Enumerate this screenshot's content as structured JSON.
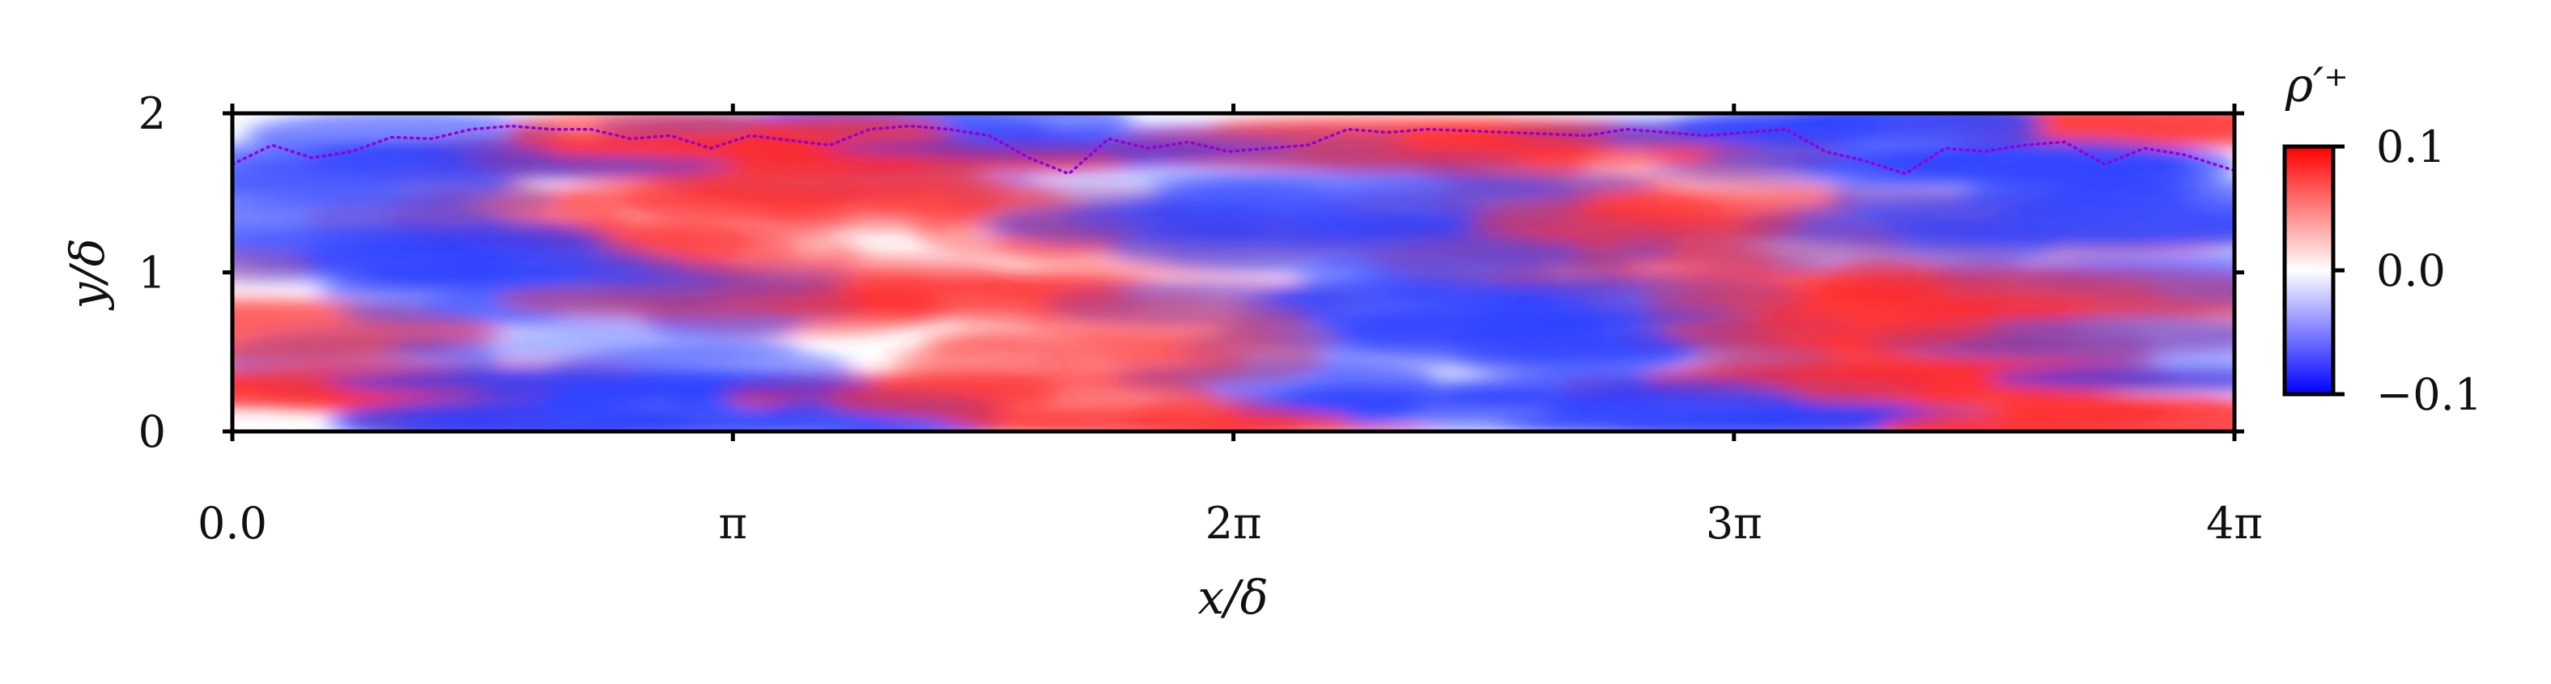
{
  "chart_data": {
    "type": "heatmap",
    "title": "",
    "xlabel": "x/δ",
    "ylabel": "y/δ",
    "xlim": [
      0,
      12.566
    ],
    "ylim": [
      0,
      2
    ],
    "x_ticks": [
      {
        "value": 0,
        "label": "0.0"
      },
      {
        "value": 3.1416,
        "label": "π"
      },
      {
        "value": 6.2832,
        "label": "2π"
      },
      {
        "value": 9.4248,
        "label": "3π"
      },
      {
        "value": 12.566,
        "label": "4π"
      }
    ],
    "y_ticks": [
      {
        "value": 0,
        "label": "0"
      },
      {
        "value": 1,
        "label": "1"
      },
      {
        "value": 2,
        "label": "2"
      }
    ],
    "colormap": [
      "#0000ff",
      "#ffffff",
      "#ff0000"
    ],
    "colorbar": {
      "label": "ρ′⁺",
      "range": [
        -0.1,
        0.1
      ],
      "ticks": [
        {
          "value": 0.1,
          "label": "0.1"
        },
        {
          "value": 0.0,
          "label": "0.0"
        },
        {
          "value": -0.1,
          "label": "−0.1"
        }
      ]
    },
    "boundary_line": {
      "style": "dotted",
      "color": "#9400d3",
      "x": [
        0.0,
        0.25,
        0.5,
        0.75,
        1.0,
        1.25,
        1.5,
        1.75,
        2.0,
        2.25,
        2.5,
        2.75,
        3.0,
        3.25,
        3.5,
        3.75,
        4.0,
        4.25,
        4.5,
        4.75,
        5.0,
        5.25,
        5.5,
        5.75,
        6.0,
        6.25,
        6.5,
        6.75,
        7.0,
        7.25,
        7.5,
        7.75,
        8.0,
        8.25,
        8.5,
        8.75,
        9.0,
        9.25,
        9.5,
        9.75,
        10.0,
        10.25,
        10.5,
        10.75,
        11.0,
        11.25,
        11.5,
        11.75,
        12.0,
        12.25,
        12.566
      ],
      "y": [
        1.68,
        1.8,
        1.72,
        1.76,
        1.85,
        1.84,
        1.9,
        1.92,
        1.9,
        1.9,
        1.84,
        1.86,
        1.78,
        1.86,
        1.83,
        1.8,
        1.9,
        1.92,
        1.9,
        1.86,
        1.72,
        1.62,
        1.84,
        1.78,
        1.82,
        1.76,
        1.78,
        1.8,
        1.9,
        1.88,
        1.9,
        1.89,
        1.88,
        1.87,
        1.86,
        1.9,
        1.88,
        1.86,
        1.88,
        1.9,
        1.76,
        1.7,
        1.62,
        1.78,
        1.76,
        1.8,
        1.82,
        1.68,
        1.78,
        1.74,
        1.64
      ]
    }
  }
}
